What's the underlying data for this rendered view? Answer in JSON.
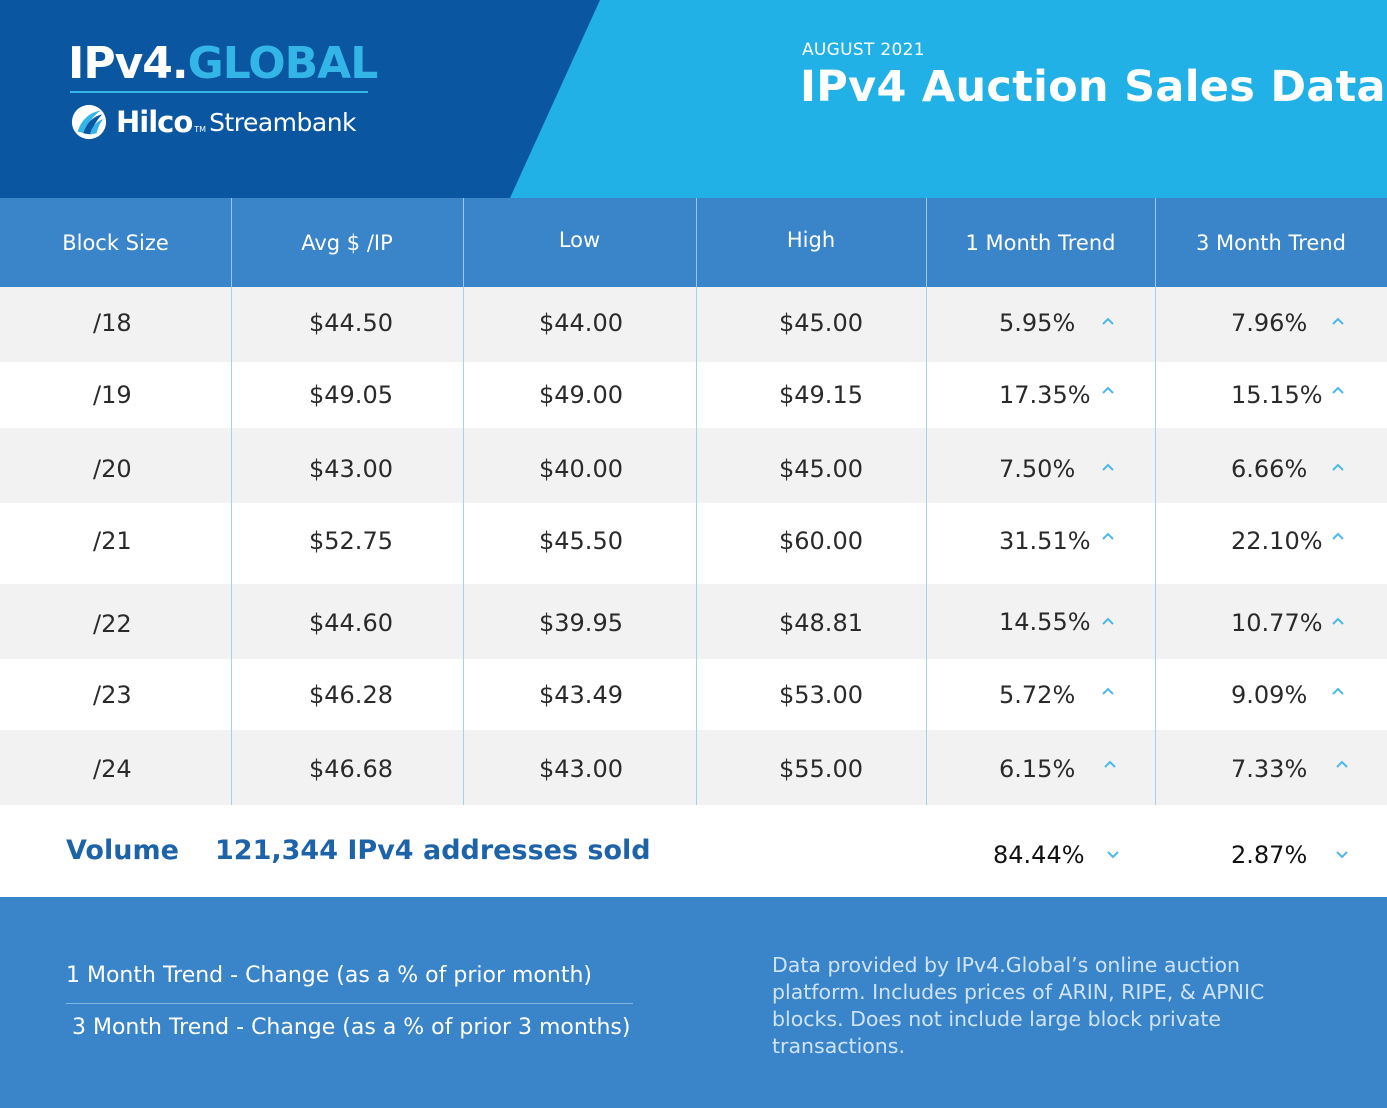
{
  "header": {
    "logo": {
      "main_prefix": "IPv4.",
      "main_suffix": "GLOBAL",
      "sub_brand": "Hilco",
      "sub_tm": "TM",
      "sub_name": "Streambank"
    },
    "date": "AUGUST 2021",
    "title": "IPv4 Auction Sales Data"
  },
  "table": {
    "columns": [
      "Block Size",
      "Avg $ /IP",
      "Low",
      "High",
      "1 Month Trend",
      "3 Month Trend"
    ],
    "rows": [
      {
        "block": "/18",
        "avg": "$44.50",
        "low": "$44.00",
        "high": "$45.00",
        "trend_1m": "5.95%",
        "trend_3m": "7.96%",
        "trend_1m_direction": "up",
        "trend_3m_direction": "up"
      },
      {
        "block": "/19",
        "avg": "$49.05",
        "low": "$49.00",
        "high": "$49.15",
        "trend_1m": "17.35%",
        "trend_3m": "15.15%",
        "trend_1m_direction": "up",
        "trend_3m_direction": "up"
      },
      {
        "block": "/20",
        "avg": "$43.00",
        "low": "$40.00",
        "high": "$45.00",
        "trend_1m": "7.50%",
        "trend_3m": "6.66%",
        "trend_1m_direction": "up",
        "trend_3m_direction": "up"
      },
      {
        "block": "/21",
        "avg": "$52.75",
        "low": "$45.50",
        "high": "$60.00",
        "trend_1m": "31.51%",
        "trend_3m": "22.10%",
        "trend_1m_direction": "up",
        "trend_3m_direction": "up"
      },
      {
        "block": "/22",
        "avg": "$44.60",
        "low": "$39.95",
        "high": "$48.81",
        "trend_1m": "14.55%",
        "trend_3m": "10.77%",
        "trend_1m_direction": "up",
        "trend_3m_direction": "up"
      },
      {
        "block": "/23",
        "avg": "$46.28",
        "low": "$43.49",
        "high": "$53.00",
        "trend_1m": "5.72%",
        "trend_3m": "9.09%",
        "trend_1m_direction": "up",
        "trend_3m_direction": "up"
      },
      {
        "block": "/24",
        "avg": "$46.68",
        "low": "$43.00",
        "high": "$55.00",
        "trend_1m": "6.15%",
        "trend_3m": "7.33%",
        "trend_1m_direction": "up",
        "trend_3m_direction": "up"
      }
    ]
  },
  "volume": {
    "label": "Volume",
    "value": "121,344 IPv4 addresses sold",
    "trend_1m": "84.44%",
    "trend_3m": "2.87%",
    "trend_1m_direction": "down",
    "trend_3m_direction": "down"
  },
  "footer": {
    "legend_1m": "1 Month Trend - Change (as a % of prior month)",
    "legend_3m": "3 Month Trend - Change (as a % of prior 3 months)",
    "note": "Data provided by IPv4.Global’s online auction platform. Includes prices of ARIN, RIPE, & APNIC blocks. Does not include large block private transactions."
  },
  "colors": {
    "header_dark": "#0a56a0",
    "header_light": "#22b1e6",
    "table_header": "#3a84c9",
    "row_alt": "#f2f2f2",
    "volume_text": "#1e63a8",
    "caret": "#4db8e8",
    "footer": "#3a84c9"
  },
  "icons": {
    "up": "caret-up-icon",
    "down": "caret-down-icon",
    "logo_mark": "hilco-swoosh-icon"
  }
}
